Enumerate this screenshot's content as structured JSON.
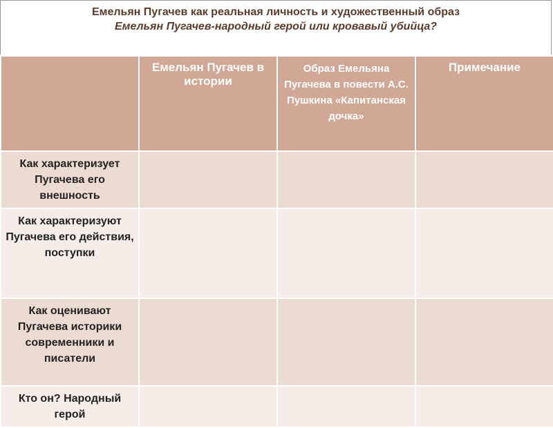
{
  "header": {
    "title": "Емельян Пугачев как реальная личность и художественный образ",
    "subtitle": "Емельян Пугачев-народный герой или кровавый убийца?"
  },
  "table": {
    "columns": [
      "Емельян Пугачев в истории",
      "Образ Емельяна Пугачева в повести А.С. Пушкина «Капитанская дочка»",
      "Примечание"
    ],
    "rows": [
      "Как характеризует Пугачева его внешность",
      "Как характеризуют Пугачева его действия, поступки",
      "Как оценивают Пугачева историки современники и писатели",
      "Кто он? Народный герой"
    ]
  }
}
